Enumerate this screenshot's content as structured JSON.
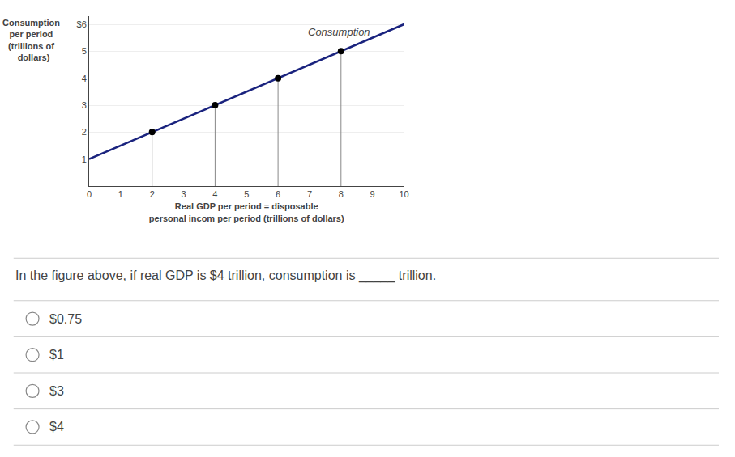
{
  "chart_data": {
    "type": "line",
    "x_label": "Real GDP per period = disposable\npersonal incom per period (trillions of dollars)",
    "y_label": "Consumption\nper period\n(trillions of\n  dollars)",
    "series": [
      {
        "name": "Consumption",
        "type": "line",
        "color": "#1a237e",
        "x": [
          0,
          10
        ],
        "values": [
          1,
          6
        ]
      },
      {
        "type": "scatter",
        "color": "#000000",
        "marker": "circle",
        "x": [
          2,
          4,
          6,
          8
        ],
        "values": [
          2,
          3,
          4,
          5
        ]
      }
    ],
    "xlim": [
      0,
      10
    ],
    "xticks": [
      0,
      1,
      2,
      3,
      4,
      5,
      6,
      7,
      8,
      9,
      10
    ],
    "ylim": [
      0,
      6.3
    ],
    "yticks": [
      1,
      2,
      3,
      4,
      5,
      {
        "value": 6,
        "label": "$6"
      }
    ],
    "grid": "y",
    "question": "In the figure above, if real GDP is $4 trillion, consumption is _____ trillion.",
    "options": [
      "$0.75",
      "$1",
      "$3",
      "$4"
    ]
  }
}
